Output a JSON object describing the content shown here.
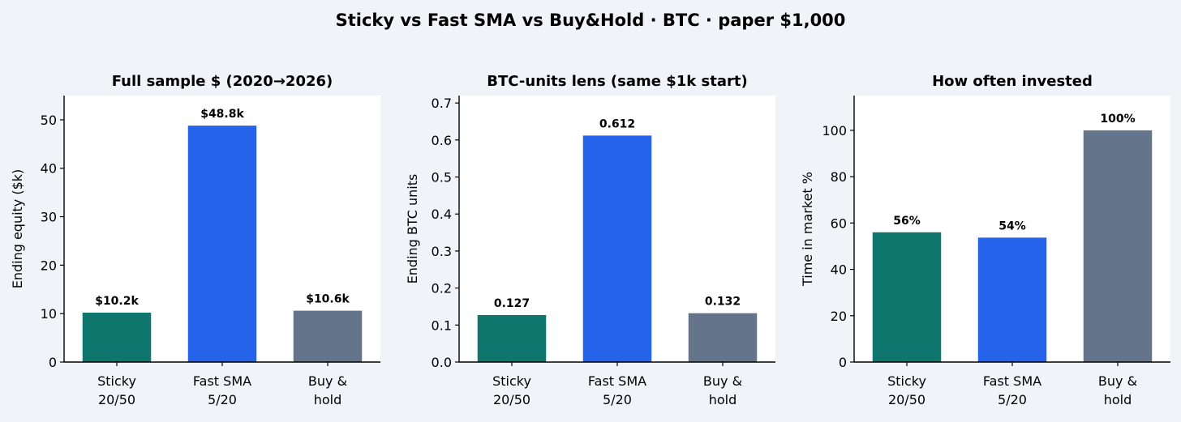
{
  "title": "Sticky vs Fast SMA vs Buy&Hold · BTC · paper $1,000",
  "colors": {
    "background": "#f0f4f9",
    "plot_background": "#ffffff",
    "sticky": "#0f766e",
    "fast_sma": "#2563eb",
    "buy_hold": "#64748b"
  },
  "chart_data": [
    {
      "type": "bar",
      "title": "Full sample $ (2020→2026)",
      "xlabel": "",
      "ylabel": "Ending equity ($k)",
      "categories": [
        [
          "Sticky",
          "20/50"
        ],
        [
          "Fast SMA",
          "5/20"
        ],
        [
          "Buy &",
          "hold"
        ]
      ],
      "values": [
        10.2,
        48.8,
        10.6
      ],
      "data_labels": [
        "$10.2k",
        "$48.8k",
        "$10.6k"
      ],
      "bar_colors": [
        "#0f766e",
        "#2563eb",
        "#64748b"
      ],
      "ylim": [
        0,
        55
      ],
      "yticks": [
        0,
        10,
        20,
        30,
        40,
        50
      ],
      "ytick_labels": [
        "0",
        "10",
        "20",
        "30",
        "40",
        "50"
      ],
      "grid": false
    },
    {
      "type": "bar",
      "title": "BTC-units lens (same $1k start)",
      "xlabel": "",
      "ylabel": "Ending BTC units",
      "categories": [
        [
          "Sticky",
          "20/50"
        ],
        [
          "Fast SMA",
          "5/20"
        ],
        [
          "Buy &",
          "hold"
        ]
      ],
      "values": [
        0.127,
        0.612,
        0.132
      ],
      "data_labels": [
        "0.127",
        "0.612",
        "0.132"
      ],
      "bar_colors": [
        "#0f766e",
        "#2563eb",
        "#64748b"
      ],
      "ylim": [
        0,
        0.72
      ],
      "yticks": [
        0,
        0.1,
        0.2,
        0.3,
        0.4,
        0.5,
        0.6,
        0.7
      ],
      "ytick_labels": [
        "0.0",
        "0.1",
        "0.2",
        "0.3",
        "0.4",
        "0.5",
        "0.6",
        "0.7"
      ],
      "grid": false
    },
    {
      "type": "bar",
      "title": "How often invested",
      "xlabel": "",
      "ylabel": "Time in market %",
      "categories": [
        [
          "Sticky",
          "20/50"
        ],
        [
          "Fast SMA",
          "5/20"
        ],
        [
          "Buy &",
          "hold"
        ]
      ],
      "values": [
        56,
        53.7,
        100
      ],
      "data_labels": [
        "56%",
        "54%",
        "100%"
      ],
      "bar_colors": [
        "#0f766e",
        "#2563eb",
        "#64748b"
      ],
      "ylim": [
        0,
        115
      ],
      "yticks": [
        0,
        20,
        40,
        60,
        80,
        100
      ],
      "ytick_labels": [
        "0",
        "20",
        "40",
        "60",
        "80",
        "100"
      ],
      "grid": false
    }
  ]
}
